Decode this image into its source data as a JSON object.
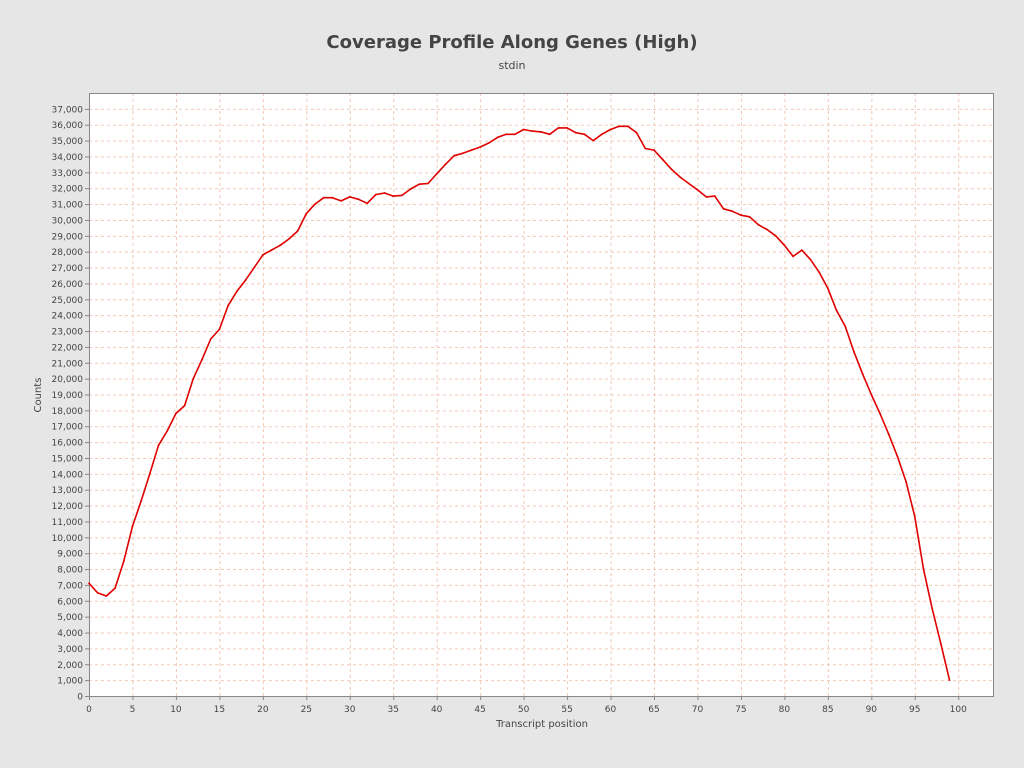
{
  "chart_data": {
    "type": "line",
    "title": "Coverage Profile Along Genes (High)",
    "subtitle": "stdin",
    "xlabel": "Transcript position",
    "ylabel": "Counts",
    "xlim": [
      0,
      104
    ],
    "ylim": [
      0,
      38000
    ],
    "x_ticks": [
      0,
      5,
      10,
      15,
      20,
      25,
      30,
      35,
      40,
      45,
      50,
      55,
      60,
      65,
      70,
      75,
      80,
      85,
      90,
      95,
      100
    ],
    "y_ticks": [
      0,
      1000,
      2000,
      3000,
      4000,
      5000,
      6000,
      7000,
      8000,
      9000,
      10000,
      11000,
      12000,
      13000,
      14000,
      15000,
      16000,
      17000,
      18000,
      19000,
      20000,
      21000,
      22000,
      23000,
      24000,
      25000,
      26000,
      27000,
      28000,
      29000,
      30000,
      31000,
      32000,
      33000,
      34000,
      35000,
      36000,
      37000
    ],
    "x_tick_labels": [
      "0",
      "5",
      "10",
      "15",
      "20",
      "25",
      "30",
      "35",
      "40",
      "45",
      "50",
      "55",
      "60",
      "65",
      "70",
      "75",
      "80",
      "85",
      "90",
      "95",
      "100"
    ],
    "y_tick_labels": [
      "0",
      "1,000",
      "2,000",
      "3,000",
      "4,000",
      "5,000",
      "6,000",
      "7,000",
      "8,000",
      "9,000",
      "10,000",
      "11,000",
      "12,000",
      "13,000",
      "14,000",
      "15,000",
      "16,000",
      "17,000",
      "18,000",
      "19,000",
      "20,000",
      "21,000",
      "22,000",
      "23,000",
      "24,000",
      "25,000",
      "26,000",
      "27,000",
      "28,000",
      "29,000",
      "30,000",
      "31,000",
      "32,000",
      "33,000",
      "34,000",
      "35,000",
      "36,000",
      "37,000"
    ],
    "grid": true,
    "legend": "none",
    "colors": {
      "background": "#e6e6e6",
      "plot_background": "#ffffff",
      "grid": "#f2c9b5",
      "line": "#e00000",
      "axis": "#888888",
      "text": "#444444"
    },
    "series": [
      {
        "x": [
          0,
          1,
          2,
          3,
          4,
          5,
          6,
          7,
          8,
          9,
          10,
          11,
          12,
          13,
          14,
          15,
          16,
          17,
          18,
          19,
          20,
          21,
          22,
          23,
          24,
          25,
          26,
          27,
          28,
          29,
          30,
          31,
          32,
          33,
          34,
          35,
          36,
          37,
          38,
          39,
          40,
          41,
          42,
          43,
          44,
          45,
          46,
          47,
          48,
          49,
          50,
          51,
          52,
          53,
          54,
          55,
          56,
          57,
          58,
          59,
          60,
          61,
          62,
          63,
          64,
          65,
          66,
          67,
          68,
          69,
          70,
          71,
          72,
          73,
          74,
          75,
          76,
          77,
          78,
          79,
          80,
          81,
          82,
          83,
          84,
          85,
          86,
          87,
          88,
          89,
          90,
          91,
          92,
          93,
          94,
          95,
          96,
          97,
          98,
          99
        ],
        "values": [
          7100,
          6500,
          6300,
          6800,
          8500,
          10700,
          12300,
          14000,
          15800,
          16700,
          17800,
          18300,
          20000,
          21200,
          22500,
          23100,
          24600,
          25500,
          26200,
          27000,
          27800,
          28100,
          28400,
          28800,
          29300,
          30400,
          31000,
          31400,
          31400,
          31200,
          31450,
          31300,
          31050,
          31600,
          31700,
          31500,
          31550,
          31950,
          32250,
          32300,
          32900,
          33500,
          34050,
          34200,
          34400,
          34600,
          34850,
          35200,
          35400,
          35400,
          35700,
          35600,
          35550,
          35400,
          35800,
          35800,
          35500,
          35400,
          35000,
          35400,
          35700,
          35900,
          35900,
          35500,
          34500,
          34400,
          33800,
          33200,
          32700,
          32300,
          31900,
          31450,
          31500,
          30700,
          30550,
          30300,
          30200,
          29700,
          29400,
          29000,
          28400,
          27700,
          28100,
          27500,
          26700,
          25700,
          24300,
          23300,
          21700,
          20300,
          19000,
          17800,
          16500,
          15100,
          13500,
          11300,
          8000,
          5500,
          3300,
          1000
        ]
      }
    ]
  }
}
